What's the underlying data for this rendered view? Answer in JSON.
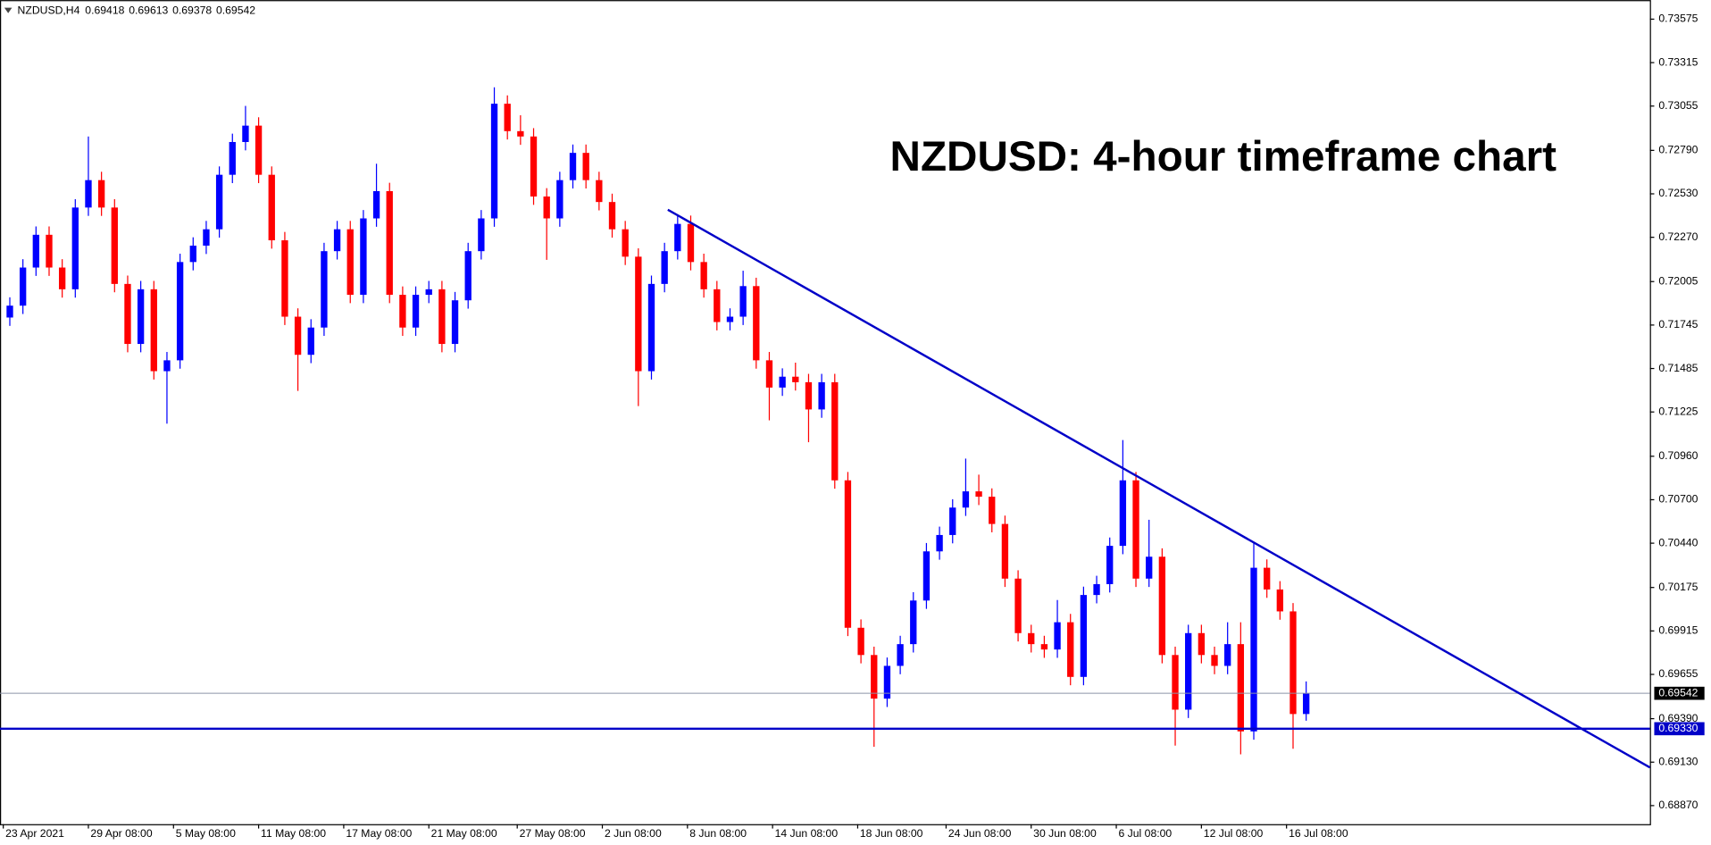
{
  "chart_data": {
    "type": "candlestick",
    "symbol": "NZDUSD,H4",
    "quote": [
      0.69418,
      0.69613,
      0.69378,
      0.69542
    ],
    "title": "NZDUSD: 4-hour timeframe chart",
    "up_color": "#0000ff",
    "down_color": "#ff0000",
    "candles": [
      [
        0.7179,
        0.71911,
        0.7174,
        0.71861
      ],
      [
        0.71861,
        0.72139,
        0.71811,
        0.72089
      ],
      [
        0.72089,
        0.72335,
        0.72039,
        0.72285
      ],
      [
        0.72285,
        0.72335,
        0.72039,
        0.72089
      ],
      [
        0.72089,
        0.72139,
        0.71909,
        0.71959
      ],
      [
        0.71959,
        0.72498,
        0.71909,
        0.72448
      ],
      [
        0.72448,
        0.72873,
        0.72398,
        0.72612
      ],
      [
        0.72612,
        0.72662,
        0.72398,
        0.72448
      ],
      [
        0.72448,
        0.72498,
        0.71941,
        0.71991
      ],
      [
        0.71991,
        0.72041,
        0.71582,
        0.71632
      ],
      [
        0.71632,
        0.72009,
        0.71582,
        0.71959
      ],
      [
        0.71959,
        0.72009,
        0.71419,
        0.71469
      ],
      [
        0.71469,
        0.71584,
        0.71155,
        0.71534
      ],
      [
        0.71534,
        0.72172,
        0.71484,
        0.72122
      ],
      [
        0.72122,
        0.7227,
        0.72072,
        0.7222
      ],
      [
        0.7222,
        0.72368,
        0.7217,
        0.72318
      ],
      [
        0.72318,
        0.72694,
        0.72268,
        0.72644
      ],
      [
        0.72644,
        0.7289,
        0.72594,
        0.7284
      ],
      [
        0.7284,
        0.73056,
        0.7279,
        0.72938
      ],
      [
        0.72938,
        0.72988,
        0.72594,
        0.72644
      ],
      [
        0.72644,
        0.72694,
        0.72202,
        0.72252
      ],
      [
        0.72252,
        0.72302,
        0.71745,
        0.71795
      ],
      [
        0.71795,
        0.71845,
        0.71351,
        0.71567
      ],
      [
        0.71567,
        0.7178,
        0.71517,
        0.7173
      ],
      [
        0.7173,
        0.72237,
        0.7168,
        0.72187
      ],
      [
        0.72187,
        0.72368,
        0.72137,
        0.72318
      ],
      [
        0.72318,
        0.72368,
        0.71876,
        0.71926
      ],
      [
        0.71926,
        0.72433,
        0.71876,
        0.72383
      ],
      [
        0.72383,
        0.7271,
        0.72333,
        0.72546
      ],
      [
        0.72546,
        0.72596,
        0.71876,
        0.71926
      ],
      [
        0.71926,
        0.71976,
        0.7168,
        0.7173
      ],
      [
        0.7173,
        0.71976,
        0.7168,
        0.71926
      ],
      [
        0.71926,
        0.72009,
        0.71876,
        0.71959
      ],
      [
        0.71959,
        0.72009,
        0.71582,
        0.71632
      ],
      [
        0.71632,
        0.71943,
        0.71582,
        0.71893
      ],
      [
        0.71893,
        0.72237,
        0.71843,
        0.72187
      ],
      [
        0.72187,
        0.72433,
        0.72137,
        0.72383
      ],
      [
        0.72383,
        0.73167,
        0.72333,
        0.73069
      ],
      [
        0.73069,
        0.73119,
        0.72855,
        0.72905
      ],
      [
        0.72905,
        0.73,
        0.72823,
        0.72873
      ],
      [
        0.72873,
        0.72923,
        0.72464,
        0.72514
      ],
      [
        0.72514,
        0.72564,
        0.72135,
        0.72383
      ],
      [
        0.72383,
        0.72662,
        0.72333,
        0.72612
      ],
      [
        0.72612,
        0.72825,
        0.72562,
        0.72775
      ],
      [
        0.72775,
        0.72825,
        0.72562,
        0.72612
      ],
      [
        0.72612,
        0.72662,
        0.72431,
        0.72481
      ],
      [
        0.72481,
        0.72531,
        0.72268,
        0.72318
      ],
      [
        0.72318,
        0.72368,
        0.72104,
        0.72154
      ],
      [
        0.72154,
        0.72204,
        0.7126,
        0.71469
      ],
      [
        0.71469,
        0.72041,
        0.71419,
        0.71991
      ],
      [
        0.71991,
        0.72237,
        0.71941,
        0.72187
      ],
      [
        0.72187,
        0.724,
        0.72137,
        0.7235
      ],
      [
        0.7235,
        0.724,
        0.72072,
        0.72122
      ],
      [
        0.72122,
        0.72172,
        0.71909,
        0.71959
      ],
      [
        0.71959,
        0.72009,
        0.71713,
        0.71763
      ],
      [
        0.71763,
        0.71845,
        0.71713,
        0.71795
      ],
      [
        0.71795,
        0.7207,
        0.71745,
        0.71978
      ],
      [
        0.71978,
        0.72028,
        0.71484,
        0.71534
      ],
      [
        0.71534,
        0.71584,
        0.71175,
        0.71371
      ],
      [
        0.71371,
        0.71486,
        0.71321,
        0.71436
      ],
      [
        0.71436,
        0.7152,
        0.71353,
        0.71403
      ],
      [
        0.71403,
        0.71453,
        0.71044,
        0.7124
      ],
      [
        0.7124,
        0.71453,
        0.7119,
        0.71403
      ],
      [
        0.71403,
        0.71453,
        0.70766,
        0.70816
      ],
      [
        0.70816,
        0.70866,
        0.69884,
        0.69934
      ],
      [
        0.69934,
        0.69984,
        0.69721,
        0.69771
      ],
      [
        0.69771,
        0.69821,
        0.69222,
        0.6951
      ],
      [
        0.6951,
        0.69756,
        0.6946,
        0.69706
      ],
      [
        0.69706,
        0.69886,
        0.69656,
        0.69836
      ],
      [
        0.69836,
        0.70147,
        0.69786,
        0.70097
      ],
      [
        0.70097,
        0.70441,
        0.70047,
        0.70391
      ],
      [
        0.70391,
        0.70539,
        0.70341,
        0.70489
      ],
      [
        0.70489,
        0.70703,
        0.70439,
        0.70653
      ],
      [
        0.70653,
        0.70946,
        0.70603,
        0.7075
      ],
      [
        0.7075,
        0.7085,
        0.70668,
        0.70718
      ],
      [
        0.70718,
        0.70768,
        0.70505,
        0.70555
      ],
      [
        0.70555,
        0.70605,
        0.70178,
        0.70228
      ],
      [
        0.70228,
        0.70278,
        0.69852,
        0.69902
      ],
      [
        0.69902,
        0.69952,
        0.69786,
        0.69836
      ],
      [
        0.69836,
        0.69886,
        0.69754,
        0.69804
      ],
      [
        0.69804,
        0.701,
        0.69754,
        0.69967
      ],
      [
        0.69967,
        0.70017,
        0.6959,
        0.6964
      ],
      [
        0.6964,
        0.7018,
        0.6959,
        0.7013
      ],
      [
        0.7013,
        0.70245,
        0.7008,
        0.70195
      ],
      [
        0.70195,
        0.70474,
        0.70145,
        0.70424
      ],
      [
        0.70424,
        0.71057,
        0.70374,
        0.70816
      ],
      [
        0.70816,
        0.70866,
        0.70178,
        0.70228
      ],
      [
        0.70228,
        0.7058,
        0.70178,
        0.70359
      ],
      [
        0.70359,
        0.70409,
        0.69721,
        0.69771
      ],
      [
        0.69771,
        0.69821,
        0.69229,
        0.69444
      ],
      [
        0.69444,
        0.69952,
        0.69394,
        0.69902
      ],
      [
        0.69902,
        0.69952,
        0.69721,
        0.69771
      ],
      [
        0.69771,
        0.69821,
        0.69656,
        0.69706
      ],
      [
        0.69706,
        0.69967,
        0.69656,
        0.69836
      ],
      [
        0.69836,
        0.69967,
        0.69177,
        0.69314
      ],
      [
        0.69314,
        0.70444,
        0.69264,
        0.70293
      ],
      [
        0.70293,
        0.70343,
        0.70113,
        0.70163
      ],
      [
        0.70163,
        0.70213,
        0.69982,
        0.70032
      ],
      [
        0.70032,
        0.70082,
        0.6921,
        0.69418
      ],
      [
        0.69418,
        0.69613,
        0.69378,
        0.69542
      ]
    ],
    "xlim": [
      -0.75,
      125.25
    ],
    "xticks": [
      {
        "value": -0.5,
        "label": "23 Apr 2021"
      },
      {
        "value": 6,
        "label": "29 Apr 08:00"
      },
      {
        "value": 12.5,
        "label": "5 May 08:00"
      },
      {
        "value": 19,
        "label": "11 May 08:00"
      },
      {
        "value": 25.5,
        "label": "17 May 08:00"
      },
      {
        "value": 32,
        "label": "21 May 08:00"
      },
      {
        "value": 38.75,
        "label": "27 May 08:00"
      },
      {
        "value": 45.25,
        "label": "2 Jun 08:00"
      },
      {
        "value": 51.75,
        "label": "8 Jun 08:00"
      },
      {
        "value": 58.25,
        "label": "14 Jun 08:00"
      },
      {
        "value": 64.75,
        "label": "18 Jun 08:00"
      },
      {
        "value": 71.5,
        "label": "24 Jun 08:00"
      },
      {
        "value": 78,
        "label": "30 Jun 08:00"
      },
      {
        "value": 84.5,
        "label": "6 Jul 08:00"
      },
      {
        "value": 91,
        "label": "12 Jul 08:00"
      },
      {
        "value": 97.5,
        "label": "16 Jul 08:00"
      }
    ],
    "ylim": [
      0.68759,
      0.73689
    ],
    "yticks": [
      0.73575,
      0.73315,
      0.73055,
      {
        "value": 0.7279,
        "label": "0.72790"
      },
      {
        "value": 0.7253,
        "label": "0.72530"
      },
      {
        "value": 0.7227,
        "label": "0.72270"
      },
      0.72005,
      0.71745,
      0.71485,
      0.71225,
      {
        "value": 0.7096,
        "label": "0.70960"
      },
      {
        "value": 0.707,
        "label": "0.70700"
      },
      {
        "value": 0.7044,
        "label": "0.70440"
      },
      0.70175,
      0.69915,
      0.69655,
      {
        "value": 0.6939,
        "label": "0.69390"
      },
      {
        "value": 0.6913,
        "label": "0.69130"
      },
      {
        "value": 0.6887,
        "label": "0.68870"
      }
    ],
    "price_lines": [
      0.69542,
      {
        "value": 0.6933,
        "label": "0.69330"
      }
    ],
    "price_line_colors": [
      "#8c94a6",
      "#0000c8"
    ],
    "trendline": {
      "x": [
        50.25,
        125.25
      ],
      "y": [
        0.72435,
        0.69098
      ],
      "color": "#0000c8"
    }
  }
}
